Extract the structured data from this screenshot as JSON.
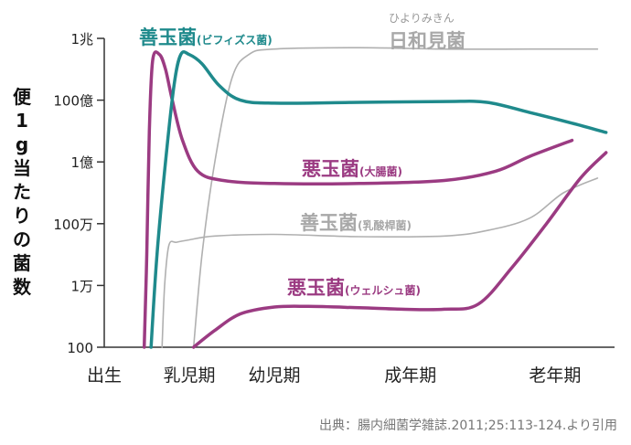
{
  "chart_data": {
    "type": "line",
    "ylabel": "便1g当たりの菌数",
    "y_log_scale": true,
    "y_ticks": [
      {
        "label": "1兆",
        "value": 1000000000000.0
      },
      {
        "label": "100億",
        "value": 10000000000.0
      },
      {
        "label": "1億",
        "value": 100000000.0
      },
      {
        "label": "100万",
        "value": 1000000.0
      },
      {
        "label": "1万",
        "value": 10000.0
      },
      {
        "label": "100",
        "value": 100.0
      }
    ],
    "ylim": [
      100,
      1000000000000.0
    ],
    "x_ticks": [
      "出生",
      "乳児期",
      "幼児期",
      "成年期",
      "老年期"
    ],
    "x_tick_positions": [
      0,
      1,
      2,
      3.6,
      5.3
    ],
    "xlim": [
      0,
      6
    ],
    "source": "出典：腸内細菌学雑誌.2011;25:113-124.より引用",
    "series": [
      {
        "key": "bifido",
        "name": "善玉菌",
        "name_suffix": "(ビフィズス菌)",
        "color": "#1f8a8c",
        "stroke_width": 3.5,
        "points": [
          [
            0.55,
            100
          ],
          [
            0.62,
            100000.0
          ],
          [
            0.72,
            100000000.0
          ],
          [
            0.82,
            30000000000.0
          ],
          [
            0.9,
            300000000000.0
          ],
          [
            1.0,
            300000000000.0
          ],
          [
            1.15,
            150000000000.0
          ],
          [
            1.35,
            30000000000.0
          ],
          [
            1.6,
            10000000000.0
          ],
          [
            2.0,
            8000000000.0
          ],
          [
            3.0,
            8500000000.0
          ],
          [
            4.0,
            9000000000.0
          ],
          [
            4.5,
            8500000000.0
          ],
          [
            5.0,
            4000000000.0
          ],
          [
            5.5,
            1800000000.0
          ],
          [
            5.9,
            900000000.0
          ]
        ]
      },
      {
        "key": "bad_large",
        "name": "悪玉菌",
        "name_suffix": "(大腸菌)",
        "color": "#9b3b82",
        "stroke_width": 3.5,
        "points": [
          [
            0.47,
            100
          ],
          [
            0.5,
            100000.0
          ],
          [
            0.53,
            1000000000.0
          ],
          [
            0.57,
            200000000000.0
          ],
          [
            0.65,
            300000000000.0
          ],
          [
            0.72,
            100000000000.0
          ],
          [
            0.8,
            10000000000.0
          ],
          [
            0.92,
            500000000.0
          ],
          [
            1.1,
            50000000.0
          ],
          [
            1.4,
            25000000.0
          ],
          [
            2.0,
            20000000.0
          ],
          [
            3.0,
            20000000.0
          ],
          [
            4.0,
            25000000.0
          ],
          [
            4.6,
            50000000.0
          ],
          [
            5.0,
            150000000.0
          ],
          [
            5.5,
            500000000.0
          ]
        ]
      },
      {
        "key": "lacto",
        "name": "善玉菌",
        "name_suffix": "(乳酸桿菌)",
        "color": "#b0b0b0",
        "stroke_width": 1.6,
        "points": [
          [
            0.68,
            100
          ],
          [
            0.71,
            10000.0
          ],
          [
            0.76,
            200000.0
          ],
          [
            0.85,
            250000.0
          ],
          [
            1.0,
            300000.0
          ],
          [
            1.3,
            400000.0
          ],
          [
            2.0,
            450000.0
          ],
          [
            3.0,
            380000.0
          ],
          [
            4.0,
            400000.0
          ],
          [
            4.5,
            600000.0
          ],
          [
            5.0,
            1500000.0
          ],
          [
            5.4,
            10000000.0
          ],
          [
            5.8,
            30000000.0
          ]
        ]
      },
      {
        "key": "hiyori",
        "name": "日和見菌",
        "name_ruby": "ひよりみきん",
        "color": "#b0b0b0",
        "stroke_width": 1.6,
        "points": [
          [
            1.05,
            100
          ],
          [
            1.15,
            100000.0
          ],
          [
            1.3,
            100000000.0
          ],
          [
            1.5,
            50000000000.0
          ],
          [
            1.7,
            300000000000.0
          ],
          [
            2.0,
            450000000000.0
          ],
          [
            3.0,
            500000000000.0
          ],
          [
            4.0,
            450000000000.0
          ],
          [
            5.0,
            450000000000.0
          ],
          [
            5.8,
            450000000000.0
          ]
        ]
      },
      {
        "key": "bad_welch",
        "name": "悪玉菌",
        "name_suffix": "(ウェルシュ菌)",
        "color": "#9b3b82",
        "stroke_width": 3.5,
        "points": [
          [
            1.05,
            100
          ],
          [
            1.3,
            350
          ],
          [
            1.6,
            1200
          ],
          [
            2.0,
            2000
          ],
          [
            2.4,
            2100
          ],
          [
            3.0,
            1900
          ],
          [
            3.5,
            1700
          ],
          [
            4.0,
            1700
          ],
          [
            4.4,
            2500
          ],
          [
            4.8,
            40000.0
          ],
          [
            5.2,
            1000000.0
          ],
          [
            5.6,
            30000000.0
          ],
          [
            5.9,
            200000000.0
          ]
        ]
      }
    ]
  }
}
